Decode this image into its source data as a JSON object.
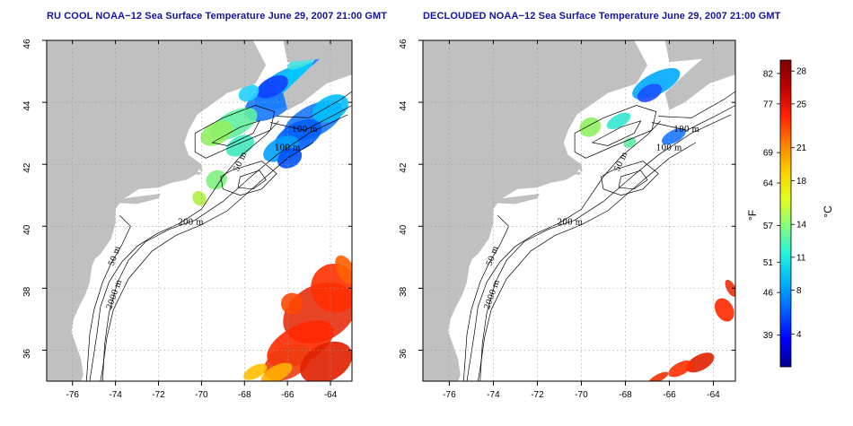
{
  "panels": [
    {
      "title": "RU COOL NOAA−12 Sea Surface Temperature June 29, 2007 21:00 GMT",
      "variant": "cool",
      "contour_labels": [
        "50 m",
        "100 m",
        "200 m",
        "50 m",
        "2000 m",
        "100 m"
      ]
    },
    {
      "title": "DECLOUDED NOAA−12 Sea Surface Temperature June 29, 2007 21:00 GMT",
      "variant": "declouded",
      "contour_labels": [
        "50 m",
        "100 m",
        "200 m",
        "50 m",
        "2000 m",
        "100 m"
      ]
    }
  ],
  "map": {
    "lon_ticks": [
      "-76",
      "-74",
      "-72",
      "-70",
      "-68",
      "-66",
      "-64"
    ],
    "lat_ticks": [
      "46",
      "44",
      "42",
      "40",
      "38",
      "36"
    ],
    "lon_range": [
      -77.2,
      -63.0
    ],
    "lat_range": [
      35.0,
      46.0
    ],
    "land_color": "#c0c0c0",
    "grid": true
  },
  "colorbar": {
    "fahrenheit_ticks": [
      "82",
      "77",
      "69",
      "64",
      "57",
      "51",
      "46",
      "39"
    ],
    "celsius_ticks": [
      "28",
      "25",
      "21",
      "18",
      "14",
      "11",
      "8",
      "4"
    ],
    "fahrenheit_unit": "°F",
    "celsius_unit": "°C",
    "range_c": [
      1,
      29
    ],
    "colors": [
      "#000090",
      "#0000ff",
      "#0060ff",
      "#00b0ff",
      "#20f0e0",
      "#80ff80",
      "#e0ff20",
      "#ffd000",
      "#ff8000",
      "#ff2000",
      "#c00000",
      "#800000"
    ]
  }
}
